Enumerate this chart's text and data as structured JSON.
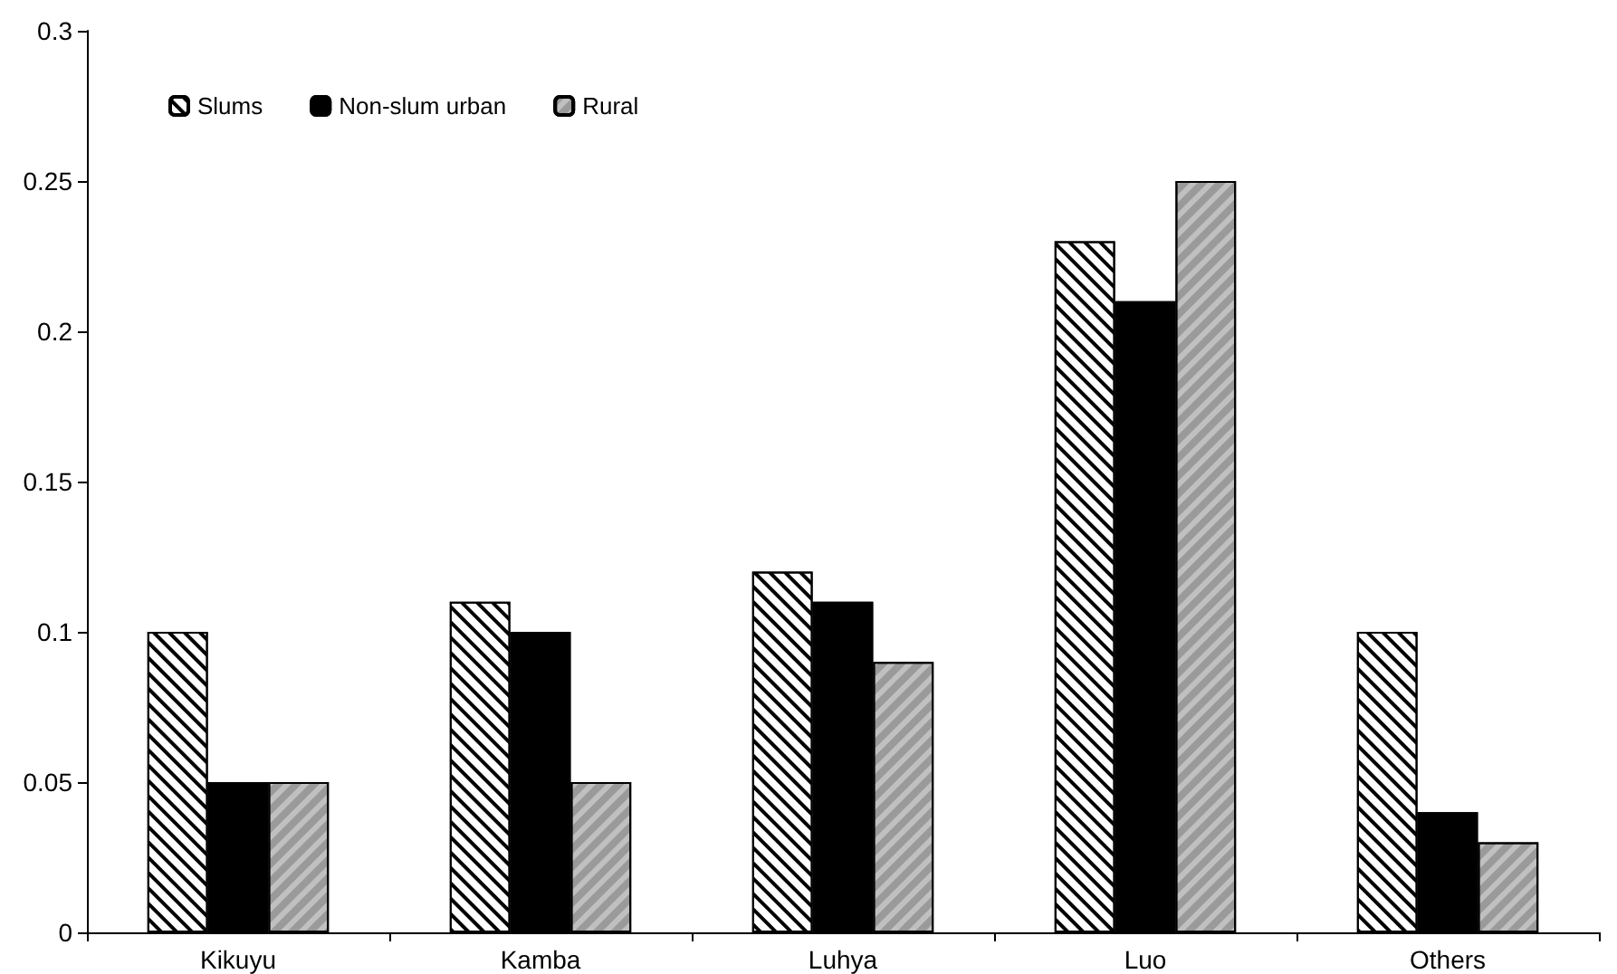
{
  "chart_data": {
    "type": "bar",
    "categories": [
      "Kikuyu",
      "Kamba",
      "Luhya",
      "Luo",
      "Others"
    ],
    "series": [
      {
        "name": "Slums",
        "color": "#ffffff",
        "values": [
          0.1,
          0.11,
          0.12,
          0.23,
          0.1
        ]
      },
      {
        "name": "Non-slum urban",
        "color": "#000000",
        "values": [
          0.05,
          0.1,
          0.11,
          0.21,
          0.04
        ]
      },
      {
        "name": "Rural",
        "color": "#c0c0c0",
        "values": [
          0.05,
          0.05,
          0.09,
          0.25,
          0.03
        ]
      }
    ],
    "ylim": [
      0,
      0.3
    ],
    "yticks": [
      0,
      0.05,
      0.1,
      0.15,
      0.2,
      0.25,
      0.3
    ],
    "grid": false,
    "legend": "top left"
  }
}
